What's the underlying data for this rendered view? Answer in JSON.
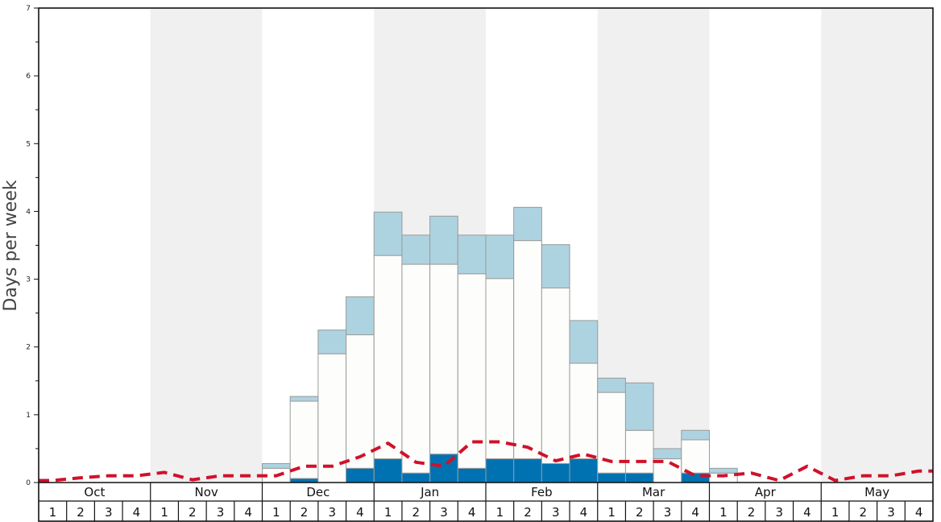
{
  "chart_data": {
    "type": "bar",
    "xlabel": "",
    "ylabel": "Days per week",
    "ylim": [
      0,
      7
    ],
    "y_ticks": [
      "0",
      "1",
      "2",
      "3",
      "4",
      "5",
      "6",
      "7"
    ],
    "months": [
      "Oct",
      "Nov",
      "Dec",
      "Jan",
      "Feb",
      "Mar",
      "Apr",
      "May"
    ],
    "week_labels": [
      "1",
      "2",
      "3",
      "4"
    ],
    "stacked": true,
    "series": [
      {
        "color": "#0072b2",
        "values": [
          0,
          0,
          0,
          0,
          0,
          0,
          0,
          0,
          0,
          0.06,
          0,
          0.21,
          0.35,
          0.14,
          0.42,
          0.21,
          0.35,
          0.35,
          0.28,
          0.35,
          0.14,
          0.14,
          0,
          0.14,
          0,
          0,
          0,
          0,
          0,
          0,
          0,
          0
        ]
      },
      {
        "color": "#fdfdfb",
        "values": [
          0,
          0,
          0,
          0,
          0,
          0,
          0,
          0,
          0.21,
          1.14,
          1.9,
          1.97,
          3.0,
          3.08,
          2.8,
          2.87,
          2.66,
          3.22,
          2.59,
          1.41,
          1.19,
          0.63,
          0.35,
          0.49,
          0.14,
          0,
          0,
          0,
          0,
          0,
          0,
          0
        ]
      },
      {
        "color": "#aed3e0",
        "values": [
          0,
          0,
          0,
          0,
          0,
          0,
          0,
          0,
          0.07,
          0.07,
          0.35,
          0.56,
          0.64,
          0.43,
          0.71,
          0.57,
          0.64,
          0.49,
          0.64,
          0.63,
          0.21,
          0.7,
          0.15,
          0.14,
          0.07,
          0,
          0,
          0,
          0,
          0,
          0,
          0
        ]
      }
    ],
    "line": {
      "style": "dashed",
      "color": "#d0112b",
      "values": [
        0.03,
        0.07,
        0.1,
        0.1,
        0.15,
        0.04,
        0.1,
        0.1,
        0.1,
        0.24,
        0.24,
        0.38,
        0.58,
        0.3,
        0.24,
        0.6,
        0.6,
        0.52,
        0.32,
        0.42,
        0.31,
        0.31,
        0.31,
        0.1,
        0.1,
        0.14,
        0.03,
        0.24,
        0.03,
        0.1,
        0.1,
        0.17
      ]
    },
    "background_bands": [
      "#ffffff",
      "#f0f0f0"
    ],
    "grid": false
  }
}
